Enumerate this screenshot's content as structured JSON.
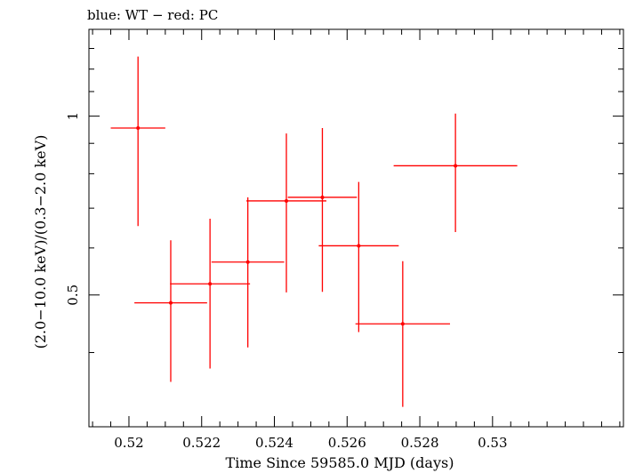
{
  "chart_data": {
    "type": "scatter",
    "title": "blue: WT − red: PC",
    "xlabel": "Time Since 59585.0 MJD (days)",
    "ylabel": "(2.0−10.0 keV)/(0.3−2.0 keV)",
    "xlim": [
      0.5189,
      0.5336
    ],
    "ylim": [
      0.3,
      1.4
    ],
    "y_scale": "log",
    "x_ticks": [
      {
        "value": 0.52,
        "label": "0.52"
      },
      {
        "value": 0.522,
        "label": "0.522"
      },
      {
        "value": 0.524,
        "label": "0.524"
      },
      {
        "value": 0.526,
        "label": "0.526"
      },
      {
        "value": 0.528,
        "label": "0.528"
      },
      {
        "value": 0.53,
        "label": "0.53"
      }
    ],
    "y_ticks": [
      {
        "value": 0.5,
        "label": "0.5"
      },
      {
        "value": 1,
        "label": "1"
      }
    ],
    "series": [
      {
        "color": "#ff0000",
        "points": [
          {
            "x": 0.52025,
            "y": 0.955,
            "xerr": 0.00075,
            "ylo": 0.653,
            "yhi": 1.26
          },
          {
            "x": 0.52115,
            "y": 0.485,
            "xerr": 0.001,
            "ylo": 0.357,
            "yhi": 0.618
          },
          {
            "x": 0.52223,
            "y": 0.522,
            "xerr": 0.0011,
            "ylo": 0.376,
            "yhi": 0.672
          },
          {
            "x": 0.52327,
            "y": 0.568,
            "xerr": 0.001,
            "ylo": 0.408,
            "yhi": 0.73
          },
          {
            "x": 0.52433,
            "y": 0.72,
            "xerr": 0.0011,
            "ylo": 0.505,
            "yhi": 0.935
          },
          {
            "x": 0.52532,
            "y": 0.73,
            "xerr": 0.00095,
            "ylo": 0.506,
            "yhi": 0.955
          },
          {
            "x": 0.52632,
            "y": 0.605,
            "xerr": 0.0011,
            "ylo": 0.433,
            "yhi": 0.775
          },
          {
            "x": 0.52753,
            "y": 0.447,
            "xerr": 0.0013,
            "ylo": 0.324,
            "yhi": 0.57
          },
          {
            "x": 0.52898,
            "y": 0.825,
            "xerr": 0.0017,
            "ylo": 0.638,
            "yhi": 1.01
          }
        ]
      }
    ]
  }
}
